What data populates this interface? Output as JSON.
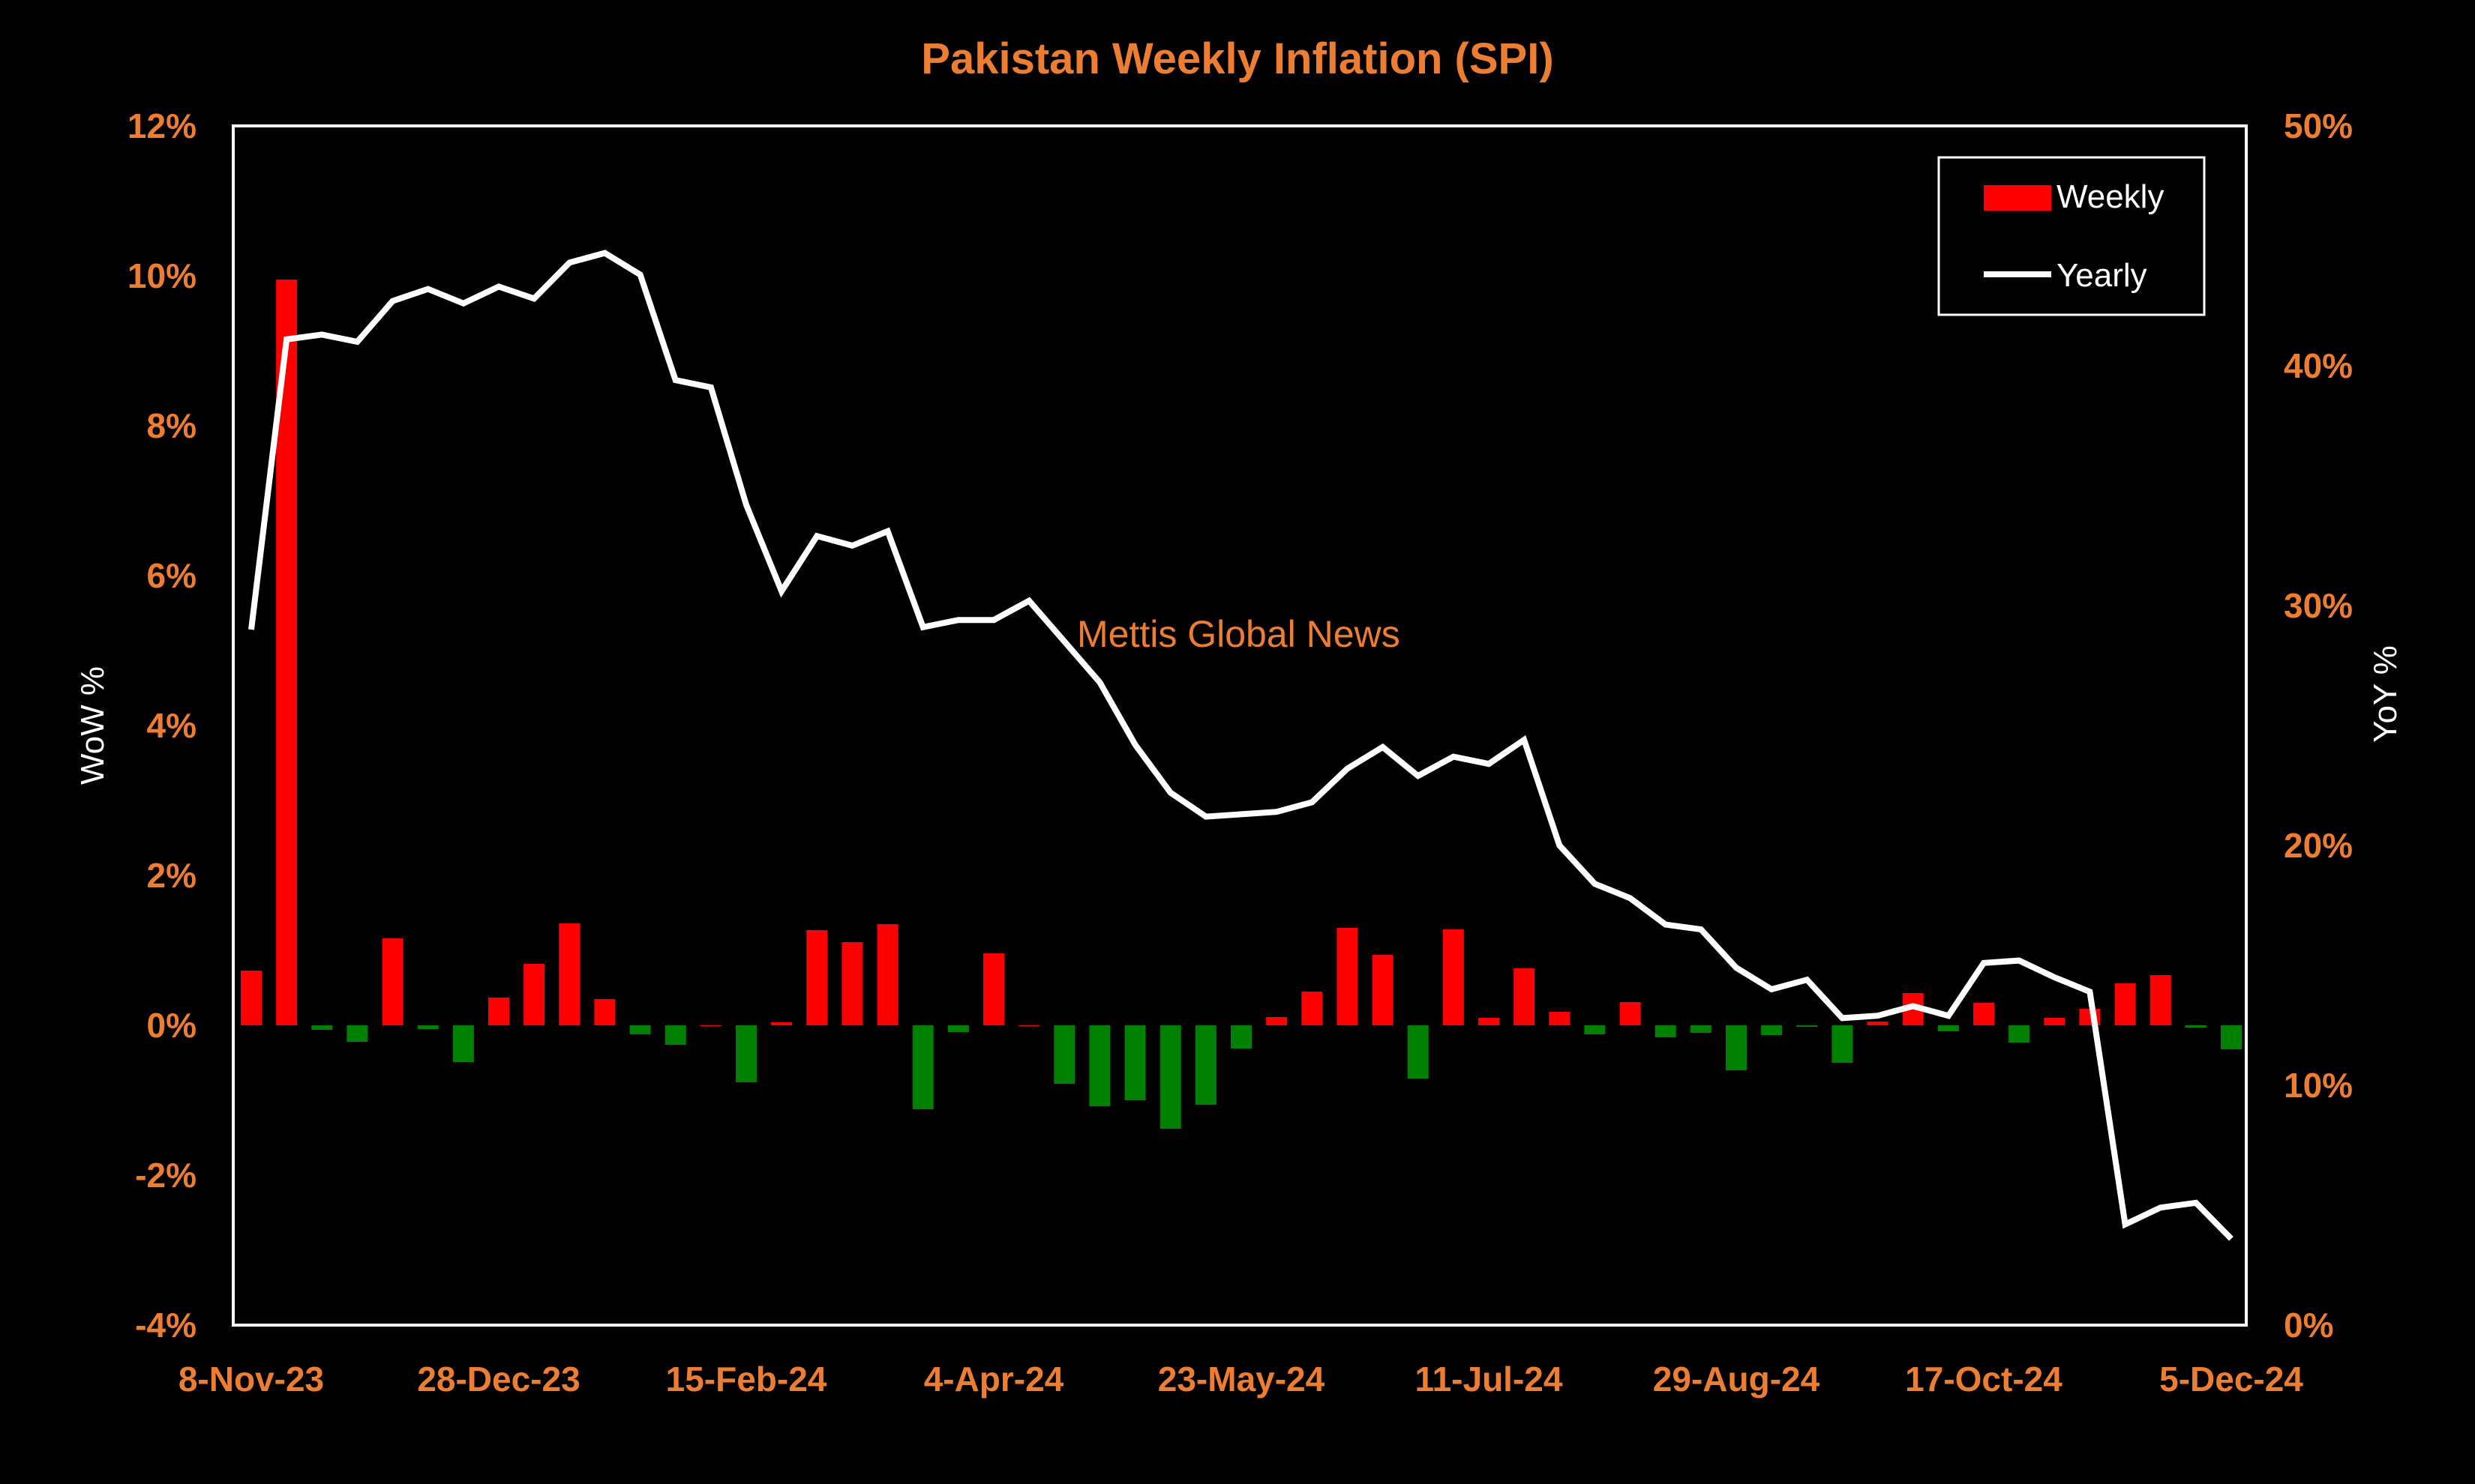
{
  "chart_data": {
    "type": "bar+line",
    "title": "Pakistan Weekly Inflation (SPI)",
    "ylabel": "WoW %",
    "y2label": "YoY %",
    "ylim": [
      -4,
      12
    ],
    "y2lim": [
      0,
      50
    ],
    "y_ticks": [
      "-4%",
      "-2%",
      "0%",
      "2%",
      "4%",
      "6%",
      "8%",
      "10%",
      "12%"
    ],
    "y2_ticks": [
      "0%",
      "10%",
      "20%",
      "30%",
      "40%",
      "50%"
    ],
    "x_tick_labels": [
      "8-Nov-23",
      "28-Dec-23",
      "15-Feb-24",
      "4-Apr-24",
      "23-May-24",
      "11-Jul-24",
      "29-Aug-24",
      "17-Oct-24",
      "5-Dec-24"
    ],
    "x_tick_positions": [
      0,
      7,
      14,
      21,
      28,
      35,
      42,
      49,
      56
    ],
    "annotation": "Mettis Global News",
    "legend": {
      "position": "top-right",
      "entries": [
        "Weekly",
        "Yearly"
      ]
    },
    "grid": false,
    "colors": {
      "positive": "#FF0000",
      "negative": "#008000",
      "line": "#FFFFFF",
      "text": "#ED7D31",
      "background": "#000000"
    },
    "series": [
      {
        "name": "Weekly",
        "type": "bar",
        "axis": "left",
        "values": [
          0.73,
          9.95,
          -0.06,
          -0.22,
          1.16,
          -0.05,
          -0.49,
          0.37,
          0.82,
          1.36,
          0.35,
          -0.12,
          -0.26,
          0.0,
          -0.76,
          0.04,
          1.27,
          1.11,
          1.35,
          -1.12,
          -0.09,
          0.96,
          0.0,
          -0.78,
          -1.08,
          -1.0,
          -1.38,
          -1.06,
          -0.31,
          0.11,
          0.45,
          1.3,
          0.94,
          -0.71,
          1.28,
          0.1,
          0.76,
          0.18,
          -0.12,
          0.31,
          -0.16,
          -0.1,
          -0.6,
          -0.13,
          -0.02,
          -0.5,
          0.05,
          0.43,
          -0.08,
          0.3,
          -0.23,
          0.1,
          0.22,
          0.56,
          0.67,
          -0.03,
          -0.32
        ]
      },
      {
        "name": "Yearly",
        "type": "line",
        "axis": "right",
        "values": [
          29.0,
          41.1,
          41.3,
          41.0,
          42.7,
          43.2,
          42.6,
          43.3,
          42.8,
          44.3,
          44.7,
          43.8,
          39.4,
          39.1,
          34.2,
          30.6,
          32.9,
          32.5,
          33.1,
          29.1,
          29.4,
          29.4,
          30.2,
          28.5,
          26.8,
          24.2,
          22.2,
          21.2,
          21.3,
          21.4,
          21.8,
          23.2,
          24.1,
          22.9,
          23.7,
          23.4,
          24.4,
          20.0,
          18.4,
          17.8,
          16.7,
          16.5,
          14.9,
          14.0,
          14.4,
          12.8,
          12.9,
          13.3,
          12.9,
          15.1,
          15.2,
          14.5,
          13.9,
          4.2,
          4.9,
          5.1,
          3.6
        ]
      }
    ]
  }
}
